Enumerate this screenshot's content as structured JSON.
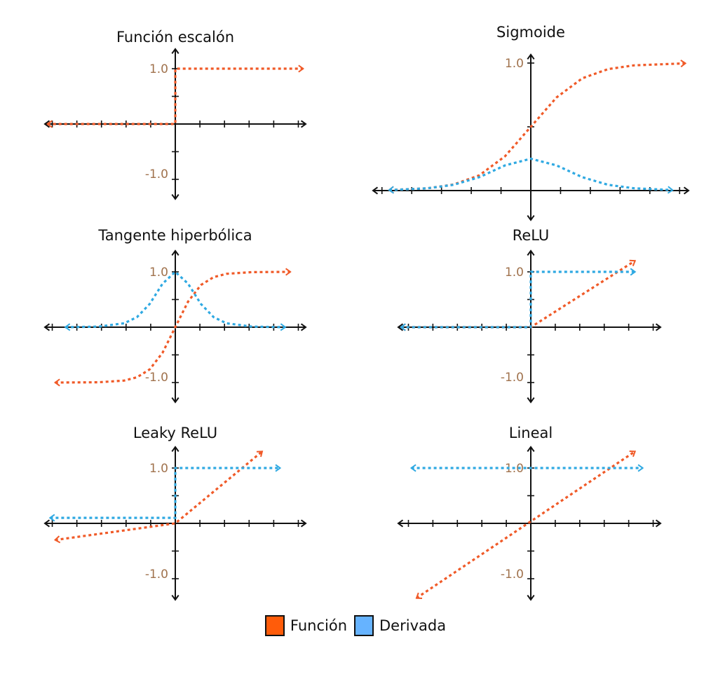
{
  "colors": {
    "funcion": "#f05a28",
    "derivada": "#2fa9e2",
    "axis": "#111111",
    "tick_label": "#a0724d",
    "legend_funcion": "#ff5c0a",
    "legend_derivada": "#66b3ff"
  },
  "legend": {
    "funcion": "Función",
    "derivada": "Derivada"
  },
  "chart_data": [
    {
      "type": "line",
      "title": "Función escalón",
      "ytick_labels": [
        "1.0",
        "-1.0"
      ],
      "xlim": [
        -5,
        5
      ],
      "ylim": [
        -1.4,
        1.3
      ],
      "grid": false,
      "series": [
        {
          "key": "funcion",
          "x": [
            -5,
            0,
            0,
            5
          ],
          "y": [
            0,
            0,
            1,
            1
          ]
        }
      ]
    },
    {
      "type": "line",
      "title": "Sigmoide",
      "ytick_labels": [
        "1.0"
      ],
      "xlim": [
        -6,
        6
      ],
      "ylim": [
        -0.15,
        1.05
      ],
      "grid": false,
      "series": [
        {
          "key": "funcion",
          "x": [
            -5.5,
            -4,
            -3,
            -2,
            -1,
            0,
            1,
            2,
            3,
            4,
            6
          ],
          "y": [
            0.004,
            0.018,
            0.047,
            0.119,
            0.269,
            0.5,
            0.731,
            0.881,
            0.953,
            0.982,
            0.998
          ]
        },
        {
          "key": "derivada",
          "x": [
            -5.5,
            -4,
            -3,
            -2,
            -1,
            0,
            1,
            2,
            3,
            4,
            5.5
          ],
          "y": [
            0.004,
            0.018,
            0.045,
            0.105,
            0.197,
            0.25,
            0.197,
            0.105,
            0.045,
            0.018,
            0.004
          ]
        }
      ]
    },
    {
      "type": "line",
      "title": "Tangente hiperbólica",
      "ytick_labels": [
        "1.0",
        "-1.0"
      ],
      "xlim": [
        -5,
        5
      ],
      "ylim": [
        -1.4,
        1.3
      ],
      "grid": false,
      "series": [
        {
          "key": "funcion",
          "x": [
            -4.7,
            -3,
            -2,
            -1.5,
            -1,
            -0.5,
            0,
            0.5,
            1,
            1.5,
            2,
            3,
            4.5
          ],
          "y": [
            -1,
            -0.995,
            -0.964,
            -0.905,
            -0.762,
            -0.462,
            0,
            0.462,
            0.762,
            0.905,
            0.964,
            0.995,
            1
          ]
        },
        {
          "key": "derivada",
          "x": [
            -4.3,
            -3,
            -2,
            -1.5,
            -1,
            -0.5,
            0,
            0.5,
            1,
            1.5,
            2,
            3,
            4.3
          ],
          "y": [
            0,
            0.01,
            0.071,
            0.181,
            0.42,
            0.786,
            1,
            0.786,
            0.42,
            0.181,
            0.071,
            0.01,
            0
          ]
        }
      ]
    },
    {
      "type": "line",
      "title": "ReLU",
      "ytick_labels": [
        "1.0",
        "-1.0"
      ],
      "xlim": [
        -5,
        5
      ],
      "ylim": [
        -1.4,
        1.3
      ],
      "grid": false,
      "series": [
        {
          "key": "funcion",
          "x": [
            -5,
            0,
            4.1
          ],
          "y": [
            0,
            0,
            1.2
          ]
        },
        {
          "key": "derivada",
          "x": [
            -5,
            0,
            0,
            4.1
          ],
          "y": [
            0,
            0,
            1,
            1
          ]
        }
      ]
    },
    {
      "type": "line",
      "title": "Leaky ReLU",
      "ytick_labels": [
        "1.0",
        "-1.0"
      ],
      "xlim": [
        -5,
        5
      ],
      "ylim": [
        -1.4,
        1.3
      ],
      "grid": false,
      "series": [
        {
          "key": "funcion",
          "x": [
            -4.7,
            0,
            3.4
          ],
          "y": [
            -0.3,
            0,
            1.3
          ]
        },
        {
          "key": "derivada",
          "x": [
            -4.9,
            0,
            0,
            4.1
          ],
          "y": [
            0.1,
            0.1,
            1,
            1
          ]
        }
      ]
    },
    {
      "type": "line",
      "title": "Lineal",
      "ytick_labels": [
        "1.0",
        "-1.0"
      ],
      "xlim": [
        -5,
        5
      ],
      "ylim": [
        -1.4,
        1.3
      ],
      "grid": false,
      "series": [
        {
          "key": "funcion",
          "x": [
            -4.4,
            4.1
          ],
          "y": [
            -1.35,
            1.3
          ]
        },
        {
          "key": "derivada",
          "x": [
            -4.6,
            4.4
          ],
          "y": [
            1,
            1
          ]
        }
      ]
    }
  ]
}
